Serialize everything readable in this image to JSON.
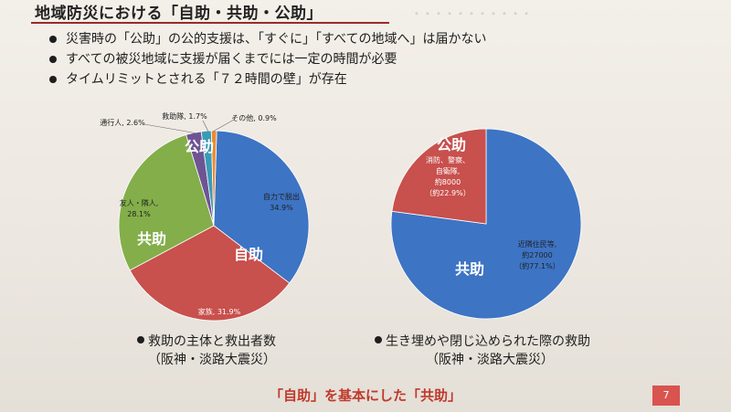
{
  "slide": {
    "title": "地域防災における「自助・共助・公助」",
    "bullets": [
      "災害時の「公助」の公的支援は、「すぐに」「すべての地域へ」は届かない",
      "すべての被災地域に支援が届くまでには一定の時間が必要",
      "タイムリミットとされる「７２時間の壁」が存在"
    ],
    "footer": "「自助」を基本にした「共助」",
    "page_number": "7"
  },
  "chart_data": [
    {
      "type": "pie",
      "caption_line1": "救助の主体と救出者数",
      "caption_line2": "（阪神・淡路大震災）",
      "slices": [
        {
          "label": "自力で脱出",
          "value": 34.9,
          "value_text": "34.9%",
          "color": "#3d74c4"
        },
        {
          "label": "家族",
          "value": 31.9,
          "value_text": "家族, 31.9%",
          "color": "#c8504d"
        },
        {
          "label": "友人・隣人",
          "value": 28.1,
          "value_text": "28.1%",
          "color": "#83ae4a"
        },
        {
          "label": "通行人",
          "value": 2.6,
          "value_text": "通行人, 2.6%",
          "color": "#6f5494"
        },
        {
          "label": "救助隊",
          "value": 1.7,
          "value_text": "救助隊, 1.7%",
          "color": "#3a9bb6"
        },
        {
          "label": "その他",
          "value": 0.9,
          "value_text": "その他, 0.9%",
          "color": "#e98c33"
        }
      ],
      "group_labels": {
        "self": "自助",
        "mutual": "共助",
        "public": "公助"
      }
    },
    {
      "type": "pie",
      "caption_line1": "生き埋めや閉じ込められた際の救助",
      "caption_line2": "（阪神・淡路大震災）",
      "slices": [
        {
          "label": "近隣住民等,",
          "value": 77.1,
          "value_text": "約27000",
          "value_text2": "（約77.1%）",
          "color": "#3d74c4"
        },
        {
          "label": "消防、警察、",
          "label2": "自衛隊,",
          "value": 22.9,
          "value_text": "約8000",
          "value_text2": "（約22.9%）",
          "color": "#c8504d"
        }
      ],
      "group_labels": {
        "mutual": "共助",
        "public": "公助"
      }
    }
  ]
}
